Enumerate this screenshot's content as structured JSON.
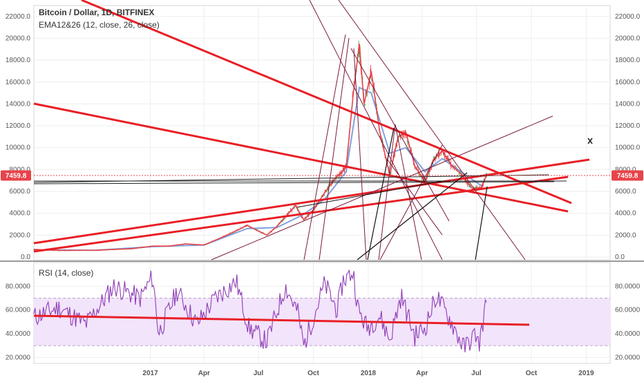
{
  "chart_data": [
    {
      "type": "line",
      "title": "Bitcoin / Dollar, 1D, BITFINEX",
      "subtitle": "EMA12&26 (12, close, 26, close)",
      "ylim": [
        0,
        23000
      ],
      "y_ticks": [
        "0.0",
        "2000.0",
        "4000.0",
        "6000.0",
        "8000.0",
        "10000.0",
        "12000.0",
        "14000.0",
        "16000.0",
        "18000.0",
        "20000.0",
        "22000.0"
      ],
      "y_tick_values": [
        0,
        2000,
        4000,
        6000,
        8000,
        10000,
        12000,
        14000,
        16000,
        18000,
        20000,
        22000
      ],
      "last_price_label": "7459.8",
      "last_price": 7459.8,
      "x_labels": [
        "2017",
        "Apr",
        "Jul",
        "Oct",
        "2018",
        "Apr",
        "Jul",
        "Oct",
        "2019"
      ],
      "x_label_dates": [
        "2017-01-01",
        "2017-04-01",
        "2017-07-01",
        "2017-10-01",
        "2018-01-01",
        "2018-04-01",
        "2018-07-01",
        "2018-10-01",
        "2019-01-01"
      ],
      "xlim": [
        "2016-06-20",
        "2019-02-10"
      ],
      "series": [
        {
          "x": [
            "2016-06-20",
            "2016-08-01",
            "2016-10-01",
            "2016-12-01",
            "2017-01-05",
            "2017-02-01",
            "2017-03-01",
            "2017-04-01",
            "2017-05-01",
            "2017-05-25",
            "2017-06-12",
            "2017-07-15",
            "2017-08-01",
            "2017-09-01",
            "2017-09-15",
            "2017-10-01",
            "2017-10-20",
            "2017-11-10",
            "2017-11-25",
            "2017-12-07",
            "2017-12-17",
            "2017-12-25",
            "2018-01-06",
            "2018-01-20",
            "2018-02-06",
            "2018-02-20",
            "2018-03-05",
            "2018-03-20",
            "2018-04-06",
            "2018-04-20",
            "2018-05-05",
            "2018-05-20",
            "2018-06-05",
            "2018-06-25",
            "2018-07-10",
            "2018-07-18"
          ],
          "values": [
            700,
            600,
            620,
            760,
            1000,
            1000,
            1200,
            1100,
            1800,
            2400,
            2900,
            2000,
            2800,
            4700,
            3400,
            4300,
            5900,
            7400,
            8200,
            15000,
            19500,
            14000,
            17000,
            11500,
            7500,
            11000,
            11400,
            8300,
            6900,
            8900,
            9700,
            8400,
            7600,
            6200,
            6400,
            7459.8
          ]
        },
        {
          "x": [
            "2016-06-20",
            "2016-10-01",
            "2017-01-05",
            "2017-04-01",
            "2017-06-12",
            "2017-08-01",
            "2017-09-15",
            "2017-10-20",
            "2017-11-25",
            "2017-12-17",
            "2018-01-06",
            "2018-02-06",
            "2018-03-05",
            "2018-04-06",
            "2018-05-05",
            "2018-06-05",
            "2018-07-10"
          ],
          "values": [
            650,
            620,
            950,
            1100,
            2600,
            2700,
            3900,
            5300,
            7800,
            15500,
            15000,
            9500,
            10000,
            7800,
            9000,
            7800,
            6500
          ]
        }
      ],
      "colors": {
        "candles_up": "#2e9e3e",
        "candles_down": "#e0393e",
        "ema_fast": "#e8434a",
        "ema_slow": "#6b8fd8",
        "trendline": "#e81f25",
        "fan": "#7a1a3a",
        "badge": "#e8434a"
      }
    },
    {
      "type": "line",
      "title": "RSI (14, close)",
      "ylim": [
        15,
        100
      ],
      "y_ticks": [
        "20.0000",
        "40.0000",
        "60.0000",
        "80.0000"
      ],
      "y_tick_values": [
        20,
        40,
        60,
        80
      ],
      "band": [
        30,
        70
      ],
      "series": [
        {
          "x": [
            "2016-06-20",
            "2016-08-01",
            "2016-09-15",
            "2016-11-01",
            "2016-12-15",
            "2017-01-05",
            "2017-01-15",
            "2017-02-15",
            "2017-03-20",
            "2017-04-20",
            "2017-05-25",
            "2017-06-15",
            "2017-07-15",
            "2017-08-15",
            "2017-09-05",
            "2017-09-15",
            "2017-10-20",
            "2017-11-10",
            "2017-11-20",
            "2017-12-07",
            "2017-12-15",
            "2017-12-30",
            "2018-01-20",
            "2018-02-06",
            "2018-02-25",
            "2018-03-20",
            "2018-04-06",
            "2018-04-25",
            "2018-05-20",
            "2018-06-10",
            "2018-06-30",
            "2018-07-05",
            "2018-07-18"
          ],
          "values": [
            54,
            62,
            48,
            80,
            70,
            88,
            40,
            76,
            48,
            70,
            84,
            45,
            33,
            80,
            58,
            30,
            82,
            60,
            85,
            92,
            60,
            45,
            55,
            35,
            72,
            38,
            45,
            72,
            50,
            28,
            40,
            30,
            67
          ]
        }
      ],
      "colors": {
        "rsi": "#8e3cb5",
        "band_fill": "#f2e4fb",
        "trendline": "#e81f25"
      }
    }
  ],
  "draw_icon": "cross-marker-icon"
}
